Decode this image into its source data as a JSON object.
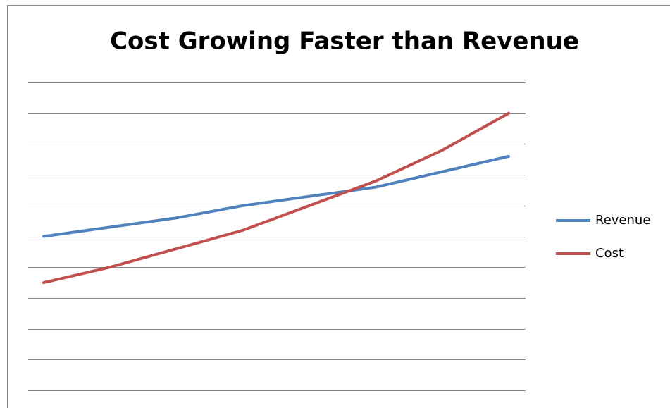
{
  "chart_data": {
    "type": "line",
    "title": "Cost Growing Faster than Revenue",
    "categories": [
      null,
      null,
      null,
      null,
      null,
      null,
      null,
      null
    ],
    "series": [
      {
        "name": "Revenue",
        "color": "#4f81bd",
        "values": [
          5.0,
          5.3,
          5.6,
          6.0,
          6.3,
          6.6,
          7.1,
          7.6
        ]
      },
      {
        "name": "Cost",
        "color": "#c0504d",
        "values": [
          3.5,
          4.0,
          4.6,
          5.2,
          6.0,
          6.8,
          7.8,
          9.0
        ]
      }
    ],
    "ylim": [
      0,
      10
    ],
    "yticks": [
      0,
      1,
      2,
      3,
      4,
      5,
      6,
      7,
      8,
      9,
      10
    ],
    "grid": true,
    "legend": "right"
  }
}
